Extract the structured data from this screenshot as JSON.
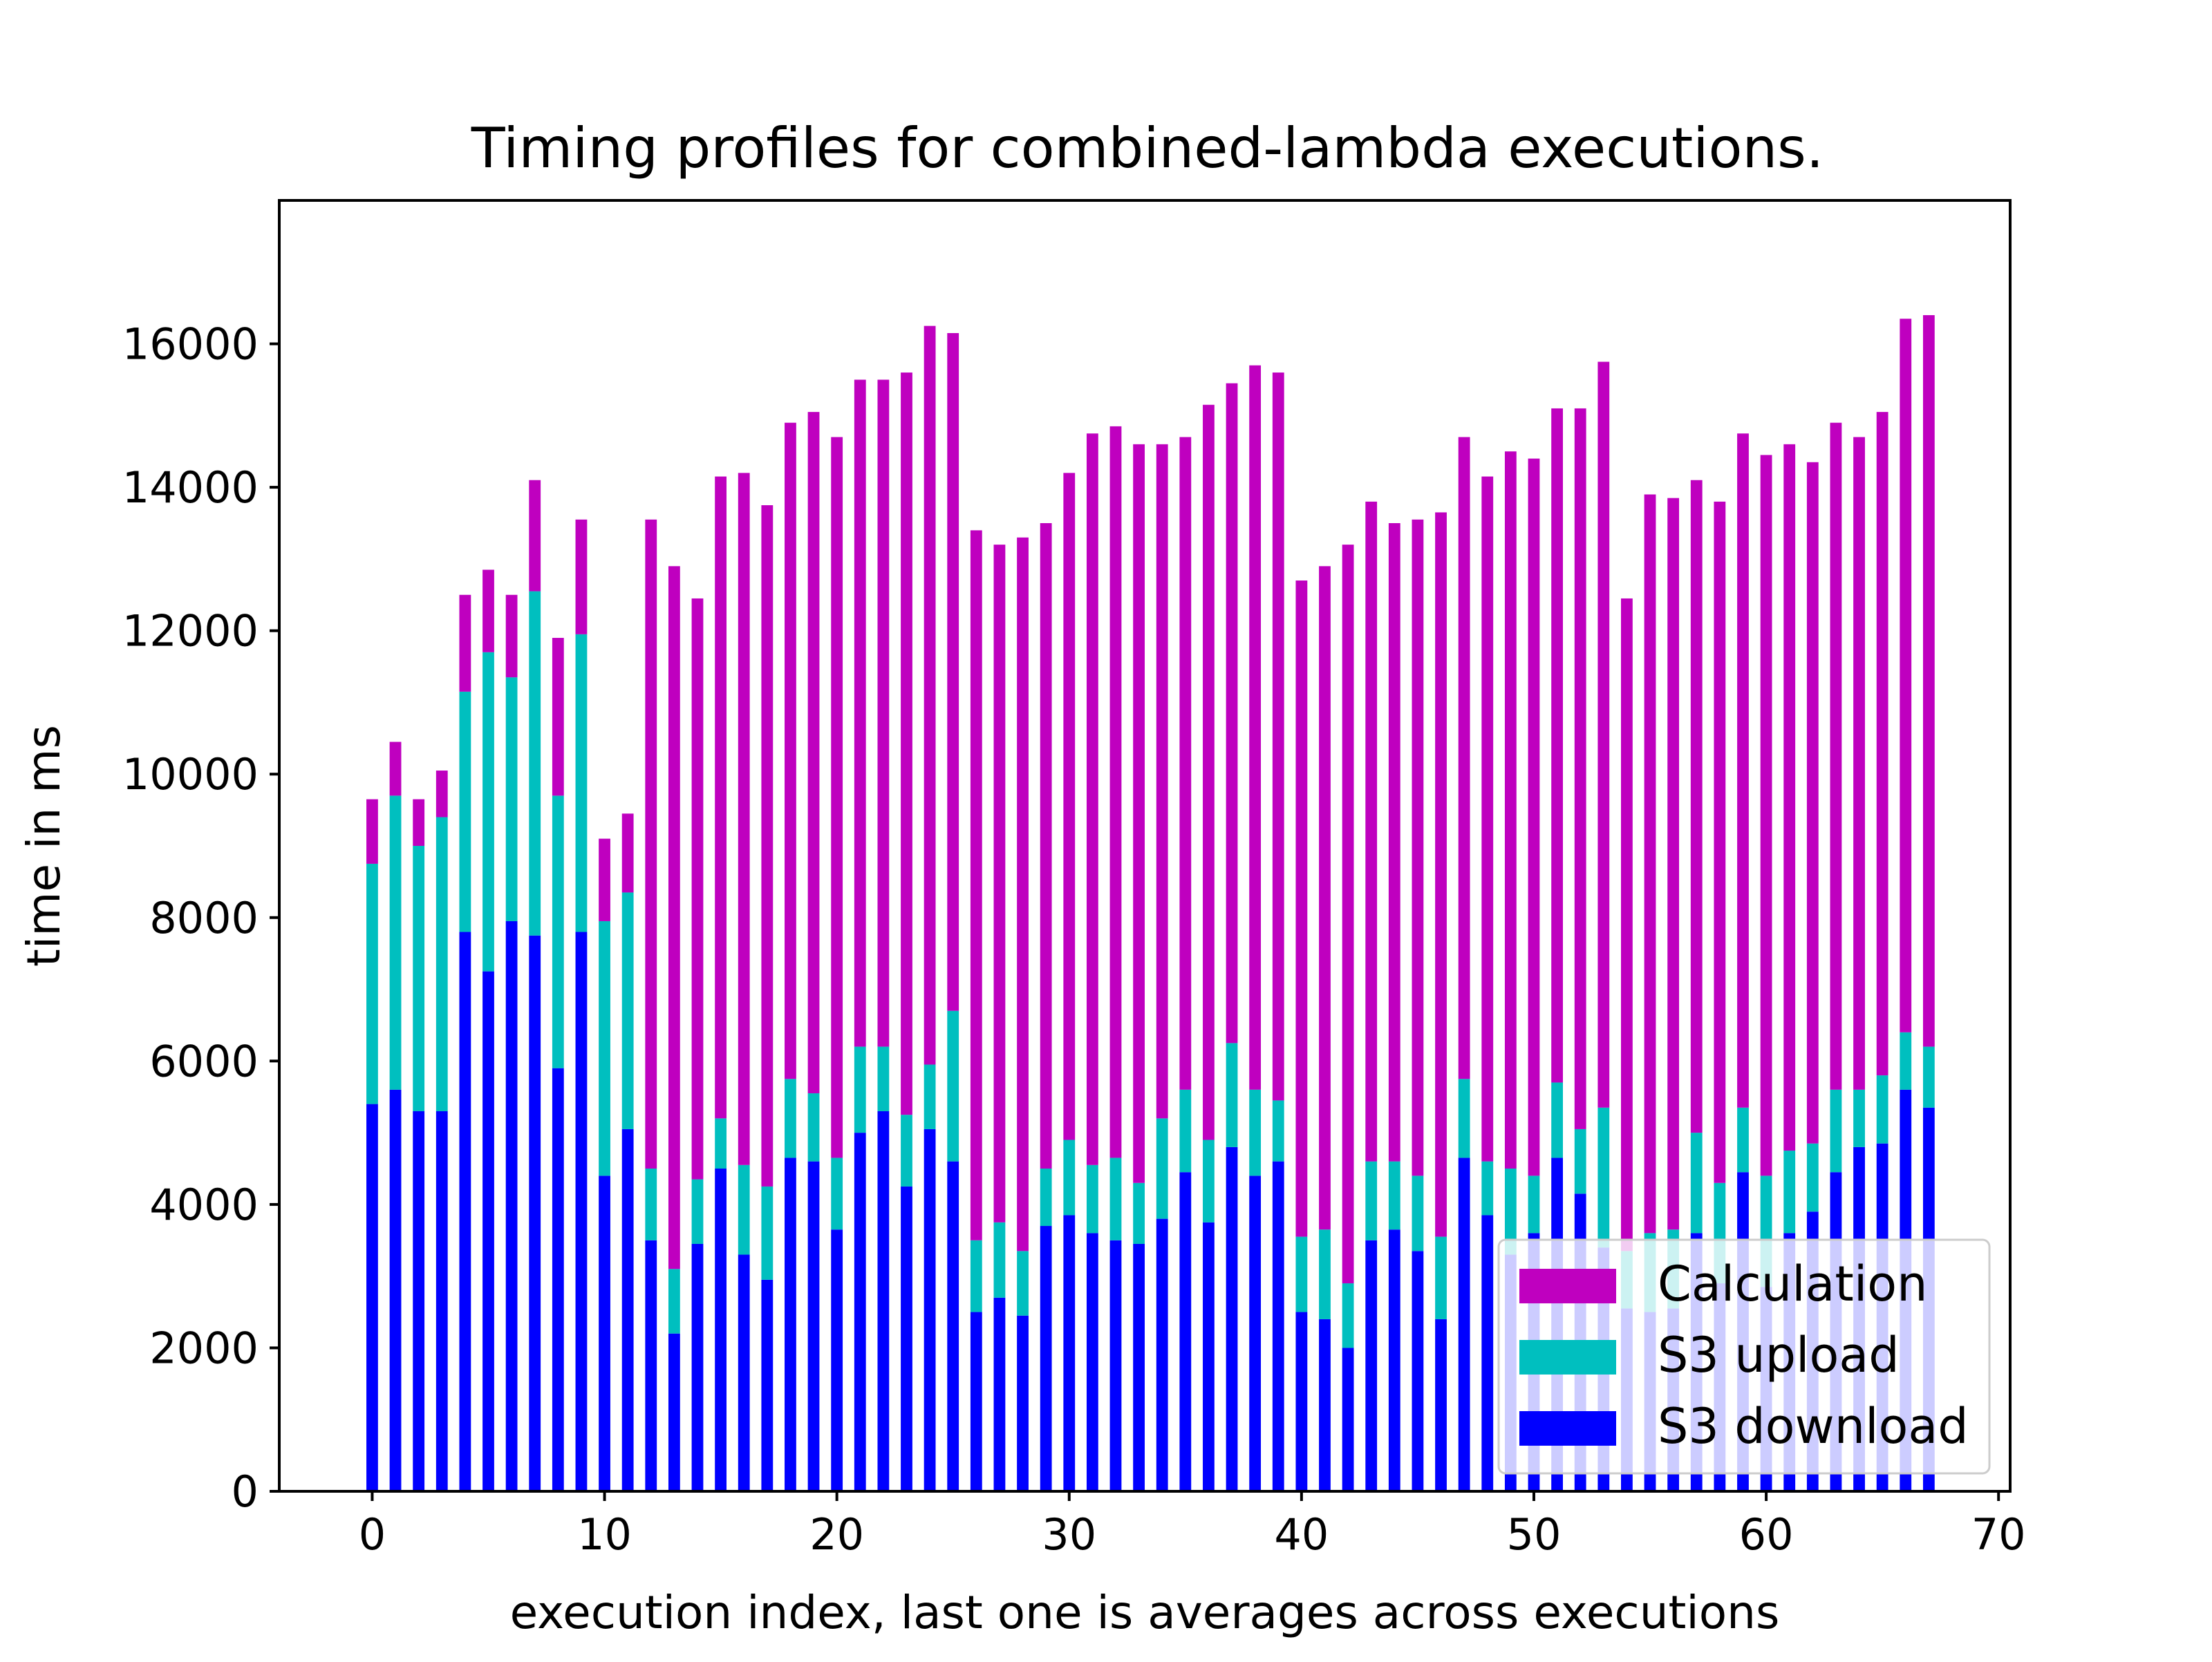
{
  "chart_data": {
    "type": "bar",
    "stacked": true,
    "title": "Timing profiles for combined-lambda executions.",
    "xlabel": "execution index, last one is averages across executions",
    "ylabel": "time in ms",
    "xlim": [
      -4,
      70.5
    ],
    "ylim": [
      0,
      18000
    ],
    "xticks": [
      0,
      10,
      20,
      30,
      40,
      50,
      60,
      70
    ],
    "yticks": [
      0,
      2000,
      4000,
      6000,
      8000,
      10000,
      12000,
      14000,
      16000
    ],
    "legend_position": "lower right",
    "colors": {
      "S3 download": "#0000ff",
      "S3 upload": "#00bfbf",
      "Calculation": "#bf00bf"
    },
    "legend": [
      "Calculation",
      "S3 upload",
      "S3 download"
    ],
    "x": [
      0,
      1,
      2,
      3,
      4,
      5,
      6,
      7,
      8,
      9,
      10,
      11,
      12,
      13,
      14,
      15,
      16,
      17,
      18,
      19,
      20,
      21,
      22,
      23,
      24,
      25,
      26,
      27,
      28,
      29,
      30,
      31,
      32,
      33,
      34,
      35,
      36,
      37,
      38,
      39,
      40,
      41,
      42,
      43,
      44,
      45,
      46,
      47,
      48,
      49,
      50,
      51,
      52,
      53,
      54,
      55,
      56,
      57,
      58,
      59,
      60,
      61,
      62,
      63,
      64,
      65,
      66,
      67
    ],
    "series": [
      {
        "name": "S3 download",
        "values": [
          5400,
          5600,
          5300,
          5300,
          7800,
          7250,
          7950,
          7750,
          5900,
          7800,
          4400,
          5050,
          3500,
          2200,
          3450,
          4500,
          3300,
          2950,
          4650,
          4600,
          3650,
          5000,
          5300,
          4250,
          5050,
          4600,
          2500,
          2700,
          2450,
          3700,
          3850,
          3600,
          3500,
          3450,
          3800,
          4450,
          3750,
          4800,
          4400,
          4600,
          2500,
          2400,
          2000,
          3500,
          3650,
          3350,
          2400,
          4650,
          3850,
          3300,
          3600,
          4650,
          4150,
          3400,
          2550,
          2500,
          2550,
          3600,
          2900,
          4450,
          2850,
          3600,
          3900,
          4450,
          4800,
          4850,
          5600,
          5350
        ]
      },
      {
        "name": "S3 upload",
        "values": [
          3350,
          4100,
          3700,
          4100,
          3350,
          4450,
          3400,
          4800,
          3800,
          4150,
          3550,
          3300,
          1000,
          900,
          900,
          700,
          1250,
          1300,
          1100,
          950,
          1000,
          1200,
          900,
          1000,
          900,
          2100,
          1000,
          1050,
          900,
          800,
          1050,
          950,
          1150,
          850,
          1400,
          1150,
          1150,
          1450,
          1200,
          850,
          1050,
          1250,
          900,
          1100,
          950,
          1050,
          1150,
          1100,
          750,
          1200,
          800,
          1050,
          900,
          1950,
          800,
          1100,
          1100,
          1400,
          1400,
          900,
          1550,
          1150,
          950,
          1150,
          800,
          950,
          800,
          850
        ]
      },
      {
        "name": "Calculation",
        "values": [
          900,
          750,
          650,
          650,
          1350,
          1150,
          1150,
          1550,
          2200,
          1600,
          1150,
          1100,
          9050,
          9800,
          8100,
          8950,
          9650,
          9500,
          9150,
          9500,
          10050,
          9300,
          9300,
          10350,
          10300,
          9450,
          9900,
          9450,
          9950,
          9000,
          9300,
          10200,
          10200,
          10300,
          9400,
          9100,
          10250,
          9200,
          10100,
          10150,
          9150,
          9250,
          10300,
          9200,
          8900,
          9150,
          10100,
          8950,
          9550,
          10000,
          10000,
          9400,
          10050,
          10400,
          9100,
          10300,
          10200,
          9100,
          9500,
          9400,
          10050,
          9850,
          9500,
          9300,
          9100,
          9250,
          9950,
          10200
        ]
      }
    ]
  }
}
